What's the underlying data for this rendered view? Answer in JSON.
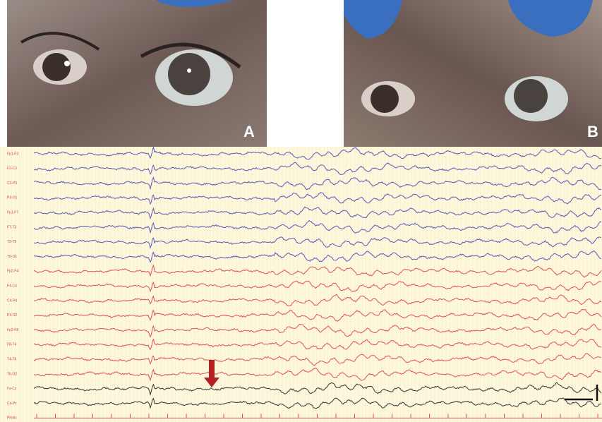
{
  "panels": [
    {
      "label": "A"
    },
    {
      "label": "B"
    }
  ],
  "eeg": {
    "channels": [
      "Fp1-F3",
      "F3-C3",
      "C3-P3",
      "P3-O1",
      "Fp1-F7",
      "F7-T3",
      "T3-T5",
      "T5-O1",
      "Fp2-F4",
      "F4-C4",
      "C4-P4",
      "P4-O2",
      "Fp2-F8",
      "F8-T4",
      "T4-T6",
      "T6-O2",
      "Fz-Cz",
      "Cz-Pz",
      "Photic"
    ]
  }
}
